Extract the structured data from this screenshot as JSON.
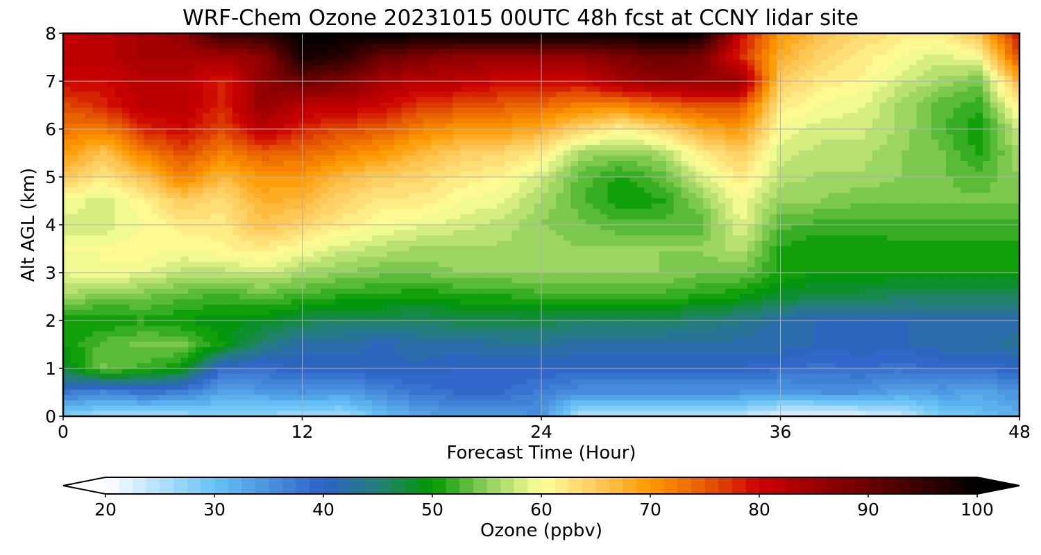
{
  "chart_data": {
    "type": "heatmap",
    "title": "WRF-Chem Ozone  20231015 00UTC 48h fcst at CCNY lidar site",
    "xlabel": "Forecast Time (Hour)",
    "ylabel": "Alt AGL (km)",
    "xlim": [
      0,
      48
    ],
    "ylim": [
      0,
      8
    ],
    "x_ticks": [
      "0",
      "12",
      "24",
      "36",
      "48"
    ],
    "y_ticks": [
      "0",
      "1",
      "2",
      "3",
      "4",
      "5",
      "6",
      "7",
      "8"
    ],
    "grid": true,
    "colorbar": {
      "label": "Ozone  (ppbv)",
      "min": 20,
      "max": 100,
      "ticks": [
        "20",
        "30",
        "40",
        "50",
        "60",
        "70",
        "80",
        "90",
        "100"
      ],
      "extend": "both",
      "orientation": "horizontal",
      "placement": "bottom"
    },
    "colormap": [
      {
        "value": 20,
        "color": "#ffffff"
      },
      {
        "value": 30,
        "color": "#66c2f5"
      },
      {
        "value": 40,
        "color": "#2e62c8"
      },
      {
        "value": 45,
        "color": "#237f78"
      },
      {
        "value": 50,
        "color": "#009900"
      },
      {
        "value": 55,
        "color": "#8fcf5a"
      },
      {
        "value": 60,
        "color": "#ffff99"
      },
      {
        "value": 65,
        "color": "#ffcc60"
      },
      {
        "value": 70,
        "color": "#ff9900"
      },
      {
        "value": 75,
        "color": "#e65c00"
      },
      {
        "value": 80,
        "color": "#cc0000"
      },
      {
        "value": 90,
        "color": "#6b0000"
      },
      {
        "value": 100,
        "color": "#000000"
      }
    ],
    "altitudes_km": [
      0,
      0.5,
      1,
      1.5,
      2,
      2.5,
      3,
      3.5,
      4,
      4.5,
      5,
      5.5,
      6,
      6.5,
      7,
      7.5,
      8
    ],
    "hours": [
      0,
      2,
      4,
      6,
      8,
      10,
      12,
      14,
      16,
      18,
      20,
      22,
      24,
      26,
      28,
      30,
      32,
      34,
      36,
      38,
      40,
      42,
      44,
      46,
      48
    ],
    "ozone_ppbv": [
      [
        28,
        26,
        26,
        26,
        28,
        27,
        26,
        26,
        30,
        33,
        34,
        34,
        35,
        24,
        25,
        24,
        24,
        24,
        22,
        21,
        22,
        24,
        28,
        30,
        32
      ],
      [
        38,
        36,
        38,
        37,
        33,
        34,
        35,
        34,
        36,
        38,
        39,
        39,
        37,
        35,
        35,
        35,
        35,
        35,
        34,
        35,
        35,
        33,
        34,
        33,
        35
      ],
      [
        48,
        54,
        52,
        50,
        39,
        39,
        40,
        40,
        41,
        41,
        40,
        40,
        40,
        40,
        40,
        40,
        40,
        40,
        39,
        38,
        39,
        38,
        39,
        39,
        40
      ],
      [
        50,
        53,
        54,
        54,
        50,
        45,
        42,
        42,
        41,
        42,
        42,
        43,
        43,
        42,
        42,
        42,
        42,
        42,
        42,
        41,
        41,
        41,
        42,
        42,
        43
      ],
      [
        50,
        50,
        51,
        50,
        49,
        49,
        47,
        46,
        46,
        46,
        47,
        47,
        47,
        46,
        46,
        46,
        45,
        44,
        42,
        41,
        41,
        41,
        42,
        42,
        42
      ],
      [
        56,
        54,
        54,
        53,
        52,
        53,
        52,
        51,
        51,
        50,
        51,
        51,
        52,
        52,
        52,
        52,
        51,
        50,
        48,
        47,
        47,
        46,
        46,
        46,
        46
      ],
      [
        59,
        60,
        59,
        57,
        57,
        58,
        56,
        55,
        54,
        54,
        55,
        55,
        55,
        55,
        55,
        55,
        54,
        54,
        51,
        50,
        50,
        50,
        50,
        50,
        50
      ],
      [
        60,
        60,
        61,
        60,
        61,
        62,
        60,
        58,
        57,
        56,
        56,
        56,
        56,
        55,
        55,
        55,
        55,
        57,
        51,
        50,
        50,
        51,
        51,
        51,
        51
      ],
      [
        58,
        58,
        60,
        62,
        62,
        66,
        64,
        62,
        60,
        59,
        58,
        57,
        55,
        54,
        53,
        53,
        53,
        59,
        53,
        52,
        52,
        52,
        52,
        52,
        52
      ],
      [
        60,
        58,
        61,
        65,
        63,
        68,
        67,
        64,
        62,
        62,
        60,
        59,
        56,
        53,
        50,
        51,
        55,
        60,
        55,
        55,
        54,
        54,
        54,
        54,
        54
      ],
      [
        66,
        62,
        66,
        72,
        67,
        70,
        70,
        67,
        65,
        64,
        62,
        61,
        58,
        53,
        51,
        53,
        58,
        62,
        57,
        56,
        56,
        55,
        54,
        53,
        55
      ],
      [
        70,
        66,
        72,
        76,
        72,
        75,
        74,
        72,
        70,
        67,
        65,
        64,
        62,
        56,
        55,
        56,
        62,
        65,
        58,
        57,
        57,
        55,
        54,
        51,
        56
      ],
      [
        73,
        72,
        78,
        80,
        76,
        82,
        78,
        76,
        75,
        72,
        70,
        70,
        68,
        64,
        61,
        64,
        68,
        70,
        60,
        58,
        58,
        56,
        53,
        50,
        58
      ],
      [
        76,
        78,
        82,
        82,
        78,
        86,
        82,
        82,
        80,
        77,
        76,
        75,
        74,
        72,
        72,
        74,
        76,
        76,
        62,
        60,
        59,
        56,
        53,
        52,
        62
      ],
      [
        80,
        80,
        82,
        82,
        78,
        86,
        90,
        88,
        84,
        82,
        82,
        80,
        80,
        80,
        84,
        86,
        86,
        86,
        65,
        62,
        61,
        58,
        56,
        54,
        68
      ],
      [
        82,
        82,
        84,
        84,
        84,
        86,
        98,
        96,
        90,
        88,
        86,
        86,
        86,
        86,
        88,
        90,
        88,
        78,
        68,
        64,
        62,
        60,
        58,
        60,
        76
      ],
      [
        80,
        82,
        84,
        86,
        96,
        96,
        100,
        100,
        100,
        100,
        100,
        100,
        100,
        100,
        100,
        100,
        100,
        80,
        70,
        66,
        64,
        62,
        62,
        66,
        80
      ]
    ]
  }
}
